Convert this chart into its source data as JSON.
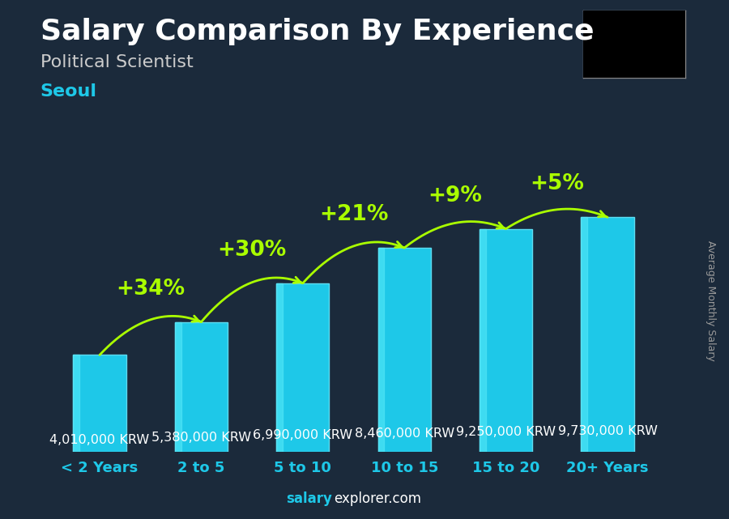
{
  "title": "Salary Comparison By Experience",
  "subtitle": "Political Scientist",
  "city": "Seoul",
  "ylabel": "Average Monthly Salary",
  "footer_salary": "salary",
  "footer_rest": "explorer.com",
  "categories": [
    "< 2 Years",
    "2 to 5",
    "5 to 10",
    "10 to 15",
    "15 to 20",
    "20+ Years"
  ],
  "values": [
    4010000,
    5380000,
    6990000,
    8460000,
    9250000,
    9730000
  ],
  "value_labels": [
    "4,010,000 KRW",
    "5,380,000 KRW",
    "6,990,000 KRW",
    "8,460,000 KRW",
    "9,250,000 KRW",
    "9,730,000 KRW"
  ],
  "pct_labels": [
    "+34%",
    "+30%",
    "+21%",
    "+9%",
    "+5%"
  ],
  "bar_color": "#1EC8E8",
  "bar_edge_color": "#5DDBF0",
  "bar_highlight": "#55E8F8",
  "bg_color": "#1B2A3B",
  "title_color": "#FFFFFF",
  "subtitle_color": "#CCCCCC",
  "city_color": "#1EC8E8",
  "label_color": "#FFFFFF",
  "pct_color": "#AAFF00",
  "arrow_color": "#AAFF00",
  "ylabel_color": "#999999",
  "footer_color_salary": "#1EC8E8",
  "footer_color_rest": "#FFFFFF",
  "cat_color": "#1EC8E8",
  "ylim": [
    0,
    12500000
  ],
  "title_fontsize": 26,
  "subtitle_fontsize": 16,
  "city_fontsize": 16,
  "label_fontsize": 11.5,
  "pct_fontsize": 19,
  "cat_fontsize": 13,
  "footer_fontsize": 12
}
